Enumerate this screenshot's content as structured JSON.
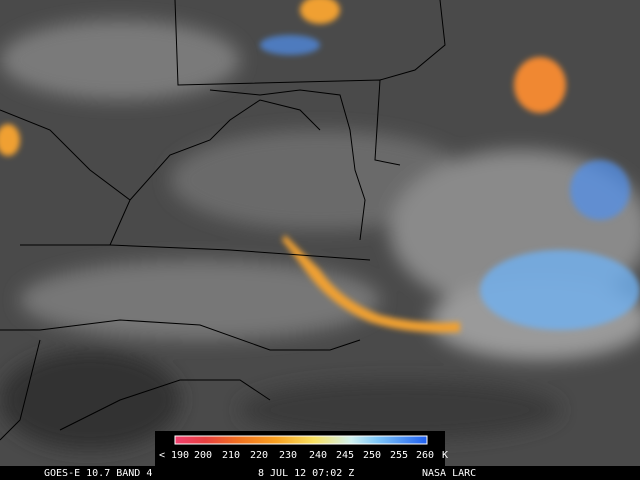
{
  "colorbar": {
    "labels": [
      "< 190",
      "200",
      "210",
      "220",
      "230",
      "240",
      "245",
      "250",
      "255",
      "260"
    ],
    "unit": "K"
  },
  "footer": {
    "satellite": "GOES-E 10.7 BAND 4",
    "time": "8 JUL 12 07:02 Z",
    "source": "NASA LARC"
  }
}
